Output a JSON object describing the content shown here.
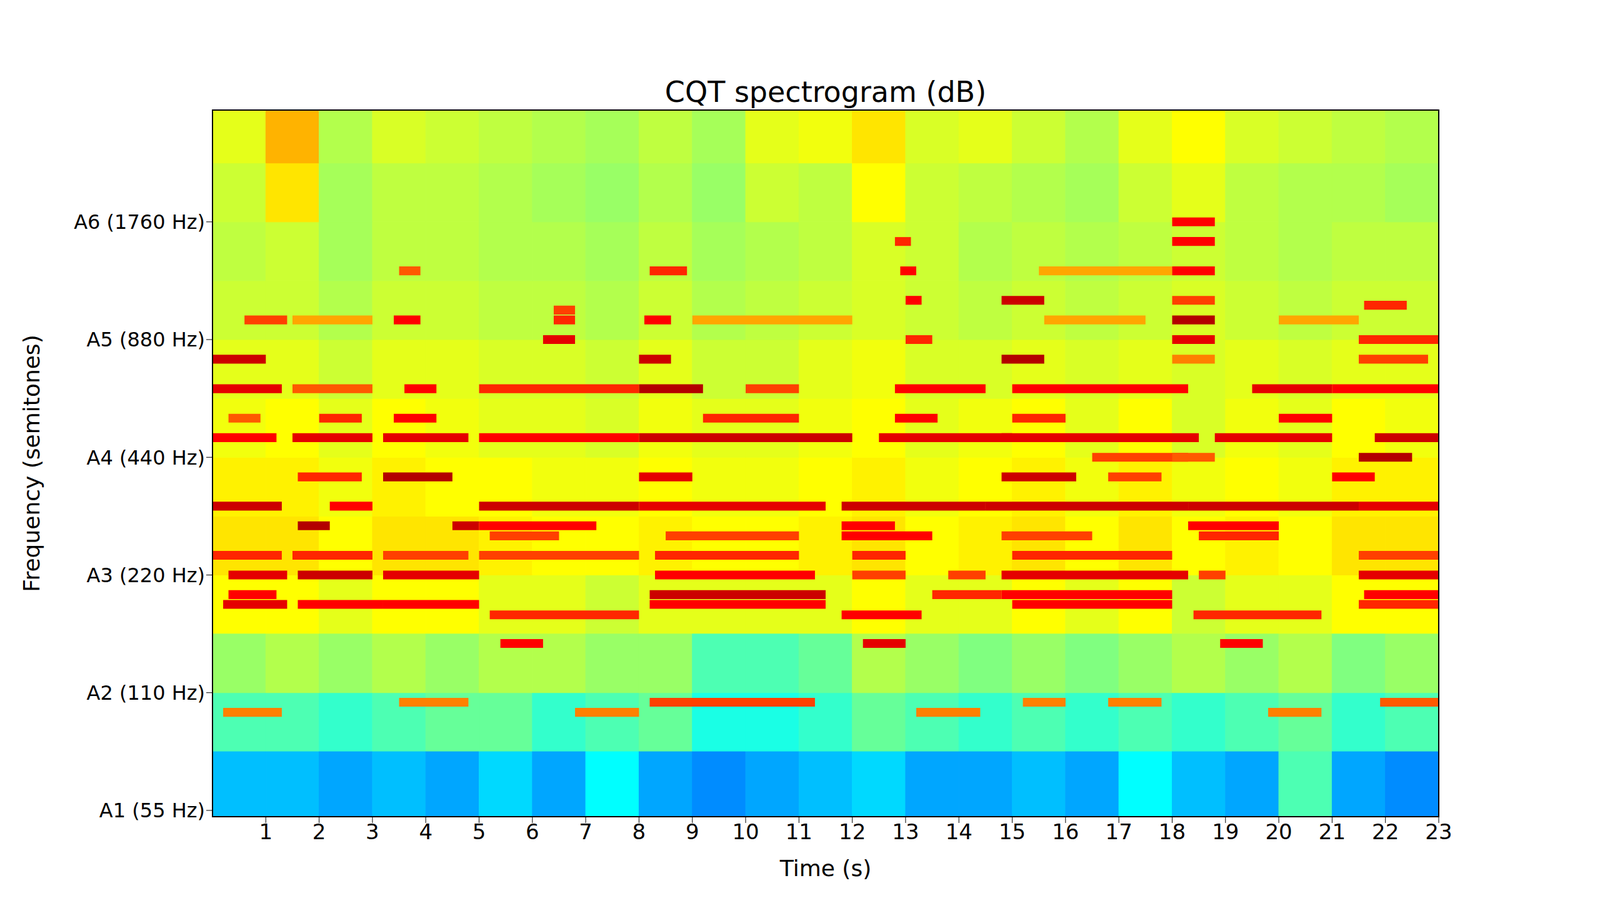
{
  "chart_data": {
    "type": "heatmap",
    "title": "CQT spectrogram (dB)",
    "x_label": "Time (s)",
    "y_label": "Frequency (semitones)",
    "xlim": [
      0,
      23
    ],
    "xticks": [
      1,
      2,
      3,
      4,
      5,
      6,
      7,
      8,
      9,
      10,
      11,
      12,
      13,
      14,
      15,
      16,
      17,
      18,
      19,
      20,
      21,
      22,
      23
    ],
    "ylim": [
      53,
      3400
    ],
    "yticks": [
      {
        "value": 55,
        "label": "A1 (55 Hz)"
      },
      {
        "value": 110,
        "label": "A2 (110 Hz)"
      },
      {
        "value": 220,
        "label": "A3 (220 Hz)"
      },
      {
        "value": 440,
        "label": "A4 (440 Hz)"
      },
      {
        "value": 880,
        "label": "A5 (880 Hz)"
      },
      {
        "value": 1760,
        "label": "A6 (1760 Hz)"
      }
    ],
    "log": "y",
    "grid": false,
    "color_range": [
      -80,
      0
    ],
    "background": {
      "time_edges": [
        0,
        1,
        2,
        3,
        4,
        5,
        6,
        7,
        8,
        9,
        10,
        11,
        12,
        13,
        14,
        15,
        16,
        17,
        18,
        19,
        20,
        21,
        22,
        23
      ],
      "freq_edges": [
        53,
        78,
        110,
        156,
        220,
        311,
        440,
        622,
        880,
        1245,
        1760,
        2489,
        3400
      ],
      "db": [
        [
          -55,
          -55,
          -57,
          -55,
          -57,
          -53,
          -57,
          -50,
          -57,
          -59,
          -57,
          -55,
          -53,
          -57,
          -57,
          -55,
          -57,
          -50,
          -55,
          -57,
          -44,
          -57,
          -59
        ],
        [
          -44,
          -44,
          -46,
          -44,
          -42,
          -42,
          -46,
          -44,
          -42,
          -48,
          -48,
          -46,
          -42,
          -44,
          -46,
          -44,
          -46,
          -44,
          -46,
          -44,
          -42,
          -46,
          -44
        ],
        [
          -38,
          -36,
          -38,
          -36,
          -38,
          -36,
          -36,
          -38,
          -38,
          -44,
          -44,
          -42,
          -36,
          -38,
          -40,
          -38,
          -40,
          -38,
          -36,
          -38,
          -36,
          -40,
          -38
        ],
        [
          -30,
          -30,
          -32,
          -30,
          -30,
          -32,
          -32,
          -34,
          -32,
          -32,
          -32,
          -32,
          -30,
          -32,
          -32,
          -30,
          -32,
          -30,
          -34,
          -32,
          -32,
          -30,
          -30
        ],
        [
          -28,
          -28,
          -30,
          -28,
          -28,
          -29,
          -30,
          -30,
          -29,
          -30,
          -30,
          -29,
          -28,
          -30,
          -29,
          -28,
          -30,
          -28,
          -30,
          -29,
          -30,
          -28,
          -28
        ],
        [
          -29,
          -29,
          -31,
          -29,
          -30,
          -30,
          -31,
          -31,
          -30,
          -31,
          -31,
          -30,
          -29,
          -31,
          -30,
          -29,
          -31,
          -29,
          -31,
          -30,
          -31,
          -29,
          -29
        ],
        [
          -31,
          -30,
          -32,
          -30,
          -31,
          -32,
          -32,
          -33,
          -31,
          -32,
          -32,
          -31,
          -30,
          -32,
          -31,
          -30,
          -32,
          -30,
          -33,
          -31,
          -32,
          -30,
          -31
        ],
        [
          -32,
          -32,
          -34,
          -32,
          -32,
          -33,
          -33,
          -34,
          -32,
          -34,
          -34,
          -32,
          -31,
          -33,
          -33,
          -32,
          -33,
          -32,
          -33,
          -32,
          -33,
          -32,
          -32
        ],
        [
          -34,
          -34,
          -36,
          -34,
          -34,
          -35,
          -35,
          -36,
          -34,
          -36,
          -35,
          -34,
          -33,
          -34,
          -35,
          -34,
          -35,
          -34,
          -33,
          -34,
          -35,
          -34,
          -34
        ],
        [
          -35,
          -34,
          -37,
          -35,
          -35,
          -36,
          -36,
          -37,
          -35,
          -37,
          -36,
          -35,
          -33,
          -34,
          -36,
          -35,
          -36,
          -35,
          -34,
          -35,
          -36,
          -35,
          -35
        ],
        [
          -34,
          -28,
          -37,
          -35,
          -35,
          -36,
          -37,
          -38,
          -36,
          -38,
          -34,
          -35,
          -30,
          -34,
          -35,
          -36,
          -37,
          -34,
          -32,
          -35,
          -36,
          -36,
          -37
        ],
        [
          -32,
          -24,
          -36,
          -33,
          -34,
          -35,
          -36,
          -37,
          -35,
          -37,
          -32,
          -31,
          -28,
          -33,
          -32,
          -34,
          -36,
          -32,
          -30,
          -33,
          -34,
          -35,
          -36
        ]
      ]
    },
    "notes": [
      {
        "t0": 0.2,
        "t1": 1.4,
        "hz": 185,
        "db": -8
      },
      {
        "t0": 0.3,
        "t1": 1.4,
        "hz": 220,
        "db": -8
      },
      {
        "t0": 0.3,
        "t1": 1.2,
        "hz": 196,
        "db": -10
      },
      {
        "t0": 0.0,
        "t1": 1.3,
        "hz": 247,
        "db": -13
      },
      {
        "t0": 0.0,
        "t1": 1.3,
        "hz": 330,
        "db": -6
      },
      {
        "t0": 0.0,
        "t1": 1.2,
        "hz": 494,
        "db": -10
      },
      {
        "t0": 0.0,
        "t1": 1.3,
        "hz": 659,
        "db": -8
      },
      {
        "t0": 0.0,
        "t1": 1.0,
        "hz": 784,
        "db": -6
      },
      {
        "t0": 0.6,
        "t1": 1.4,
        "hz": 988,
        "db": -15
      },
      {
        "t0": 0.2,
        "t1": 1.3,
        "hz": 98,
        "db": -20
      },
      {
        "t0": 0.3,
        "t1": 0.9,
        "hz": 554,
        "db": -17
      },
      {
        "t0": 1.6,
        "t1": 2.2,
        "hz": 294,
        "db": -4
      },
      {
        "t0": 2.2,
        "t1": 3.0,
        "hz": 330,
        "db": -10
      },
      {
        "t0": 1.6,
        "t1": 3.0,
        "hz": 220,
        "db": -6
      },
      {
        "t0": 1.6,
        "t1": 3.2,
        "hz": 185,
        "db": -10
      },
      {
        "t0": 1.5,
        "t1": 3.0,
        "hz": 247,
        "db": -13
      },
      {
        "t0": 1.6,
        "t1": 2.8,
        "hz": 392,
        "db": -13
      },
      {
        "t0": 1.5,
        "t1": 3.0,
        "hz": 494,
        "db": -8
      },
      {
        "t0": 2.0,
        "t1": 2.8,
        "hz": 554,
        "db": -13
      },
      {
        "t0": 1.5,
        "t1": 3.0,
        "hz": 659,
        "db": -17
      },
      {
        "t0": 3.2,
        "t1": 4.5,
        "hz": 392,
        "db": -4
      },
      {
        "t0": 4.5,
        "t1": 5.0,
        "hz": 294,
        "db": -6
      },
      {
        "t0": 3.2,
        "t1": 5.0,
        "hz": 220,
        "db": -8
      },
      {
        "t0": 3.2,
        "t1": 5.0,
        "hz": 185,
        "db": -10
      },
      {
        "t0": 3.2,
        "t1": 4.8,
        "hz": 247,
        "db": -15
      },
      {
        "t0": 3.2,
        "t1": 4.8,
        "hz": 494,
        "db": -8
      },
      {
        "t0": 3.6,
        "t1": 4.2,
        "hz": 659,
        "db": -10
      },
      {
        "t0": 3.4,
        "t1": 4.2,
        "hz": 554,
        "db": -10
      },
      {
        "t0": 3.5,
        "t1": 4.8,
        "hz": 104,
        "db": -20
      },
      {
        "t0": 3.4,
        "t1": 3.9,
        "hz": 988,
        "db": -10
      },
      {
        "t0": 3.5,
        "t1": 3.9,
        "hz": 1319,
        "db": -17
      },
      {
        "t0": 5.0,
        "t1": 8.0,
        "hz": 330,
        "db": -6
      },
      {
        "t0": 5.0,
        "t1": 7.2,
        "hz": 294,
        "db": -10
      },
      {
        "t0": 5.2,
        "t1": 6.5,
        "hz": 277,
        "db": -15
      },
      {
        "t0": 5.0,
        "t1": 8.0,
        "hz": 247,
        "db": -15
      },
      {
        "t0": 5.2,
        "t1": 8.0,
        "hz": 174,
        "db": -13
      },
      {
        "t0": 5.4,
        "t1": 6.2,
        "hz": 147,
        "db": -10
      },
      {
        "t0": 6.8,
        "t1": 8.0,
        "hz": 98,
        "db": -20
      },
      {
        "t0": 5.0,
        "t1": 8.0,
        "hz": 494,
        "db": -10
      },
      {
        "t0": 5.0,
        "t1": 8.0,
        "hz": 659,
        "db": -13
      },
      {
        "t0": 6.2,
        "t1": 6.8,
        "hz": 880,
        "db": -8
      },
      {
        "t0": 6.4,
        "t1": 6.8,
        "hz": 988,
        "db": -13
      },
      {
        "t0": 6.4,
        "t1": 6.8,
        "hz": 1047,
        "db": -15
      },
      {
        "t0": 8.2,
        "t1": 11.5,
        "hz": 196,
        "db": -6
      },
      {
        "t0": 8.3,
        "t1": 11.3,
        "hz": 220,
        "db": -10
      },
      {
        "t0": 8.2,
        "t1": 11.3,
        "hz": 104,
        "db": -15
      },
      {
        "t0": 8.2,
        "t1": 11.5,
        "hz": 185,
        "db": -10
      },
      {
        "t0": 8.3,
        "t1": 11.0,
        "hz": 247,
        "db": -13
      },
      {
        "t0": 8.5,
        "t1": 11.0,
        "hz": 277,
        "db": -15
      },
      {
        "t0": 8.0,
        "t1": 11.5,
        "hz": 330,
        "db": -8
      },
      {
        "t0": 8.0,
        "t1": 9.0,
        "hz": 392,
        "db": -8
      },
      {
        "t0": 8.0,
        "t1": 12.0,
        "hz": 494,
        "db": -6
      },
      {
        "t0": 8.0,
        "t1": 9.2,
        "hz": 659,
        "db": -4
      },
      {
        "t0": 8.0,
        "t1": 8.6,
        "hz": 784,
        "db": -6
      },
      {
        "t0": 8.1,
        "t1": 8.6,
        "hz": 988,
        "db": -10
      },
      {
        "t0": 8.2,
        "t1": 8.9,
        "hz": 1319,
        "db": -13
      },
      {
        "t0": 9.2,
        "t1": 11.0,
        "hz": 554,
        "db": -13
      },
      {
        "t0": 10.0,
        "t1": 11.0,
        "hz": 659,
        "db": -15
      },
      {
        "t0": 11.8,
        "t1": 14.5,
        "hz": 330,
        "db": -6
      },
      {
        "t0": 11.8,
        "t1": 12.8,
        "hz": 294,
        "db": -10
      },
      {
        "t0": 11.8,
        "t1": 13.5,
        "hz": 277,
        "db": -10
      },
      {
        "t0": 12.0,
        "t1": 13.0,
        "hz": 247,
        "db": -13
      },
      {
        "t0": 11.8,
        "t1": 13.3,
        "hz": 174,
        "db": -10
      },
      {
        "t0": 12.2,
        "t1": 13.0,
        "hz": 147,
        "db": -8
      },
      {
        "t0": 12.0,
        "t1": 13.0,
        "hz": 220,
        "db": -15
      },
      {
        "t0": 13.8,
        "t1": 14.5,
        "hz": 220,
        "db": -15
      },
      {
        "t0": 13.5,
        "t1": 14.8,
        "hz": 196,
        "db": -13
      },
      {
        "t0": 12.5,
        "t1": 15.0,
        "hz": 494,
        "db": -8
      },
      {
        "t0": 12.8,
        "t1": 13.6,
        "hz": 554,
        "db": -10
      },
      {
        "t0": 12.8,
        "t1": 14.5,
        "hz": 659,
        "db": -10
      },
      {
        "t0": 13.2,
        "t1": 14.4,
        "hz": 98,
        "db": -20
      },
      {
        "t0": 13.0,
        "t1": 13.5,
        "hz": 880,
        "db": -13
      },
      {
        "t0": 13.0,
        "t1": 13.3,
        "hz": 1109,
        "db": -10
      },
      {
        "t0": 12.9,
        "t1": 13.2,
        "hz": 1319,
        "db": -10
      },
      {
        "t0": 12.8,
        "t1": 13.1,
        "hz": 1568,
        "db": -13
      },
      {
        "t0": 14.5,
        "t1": 18.3,
        "hz": 330,
        "db": -6
      },
      {
        "t0": 14.8,
        "t1": 16.2,
        "hz": 392,
        "db": -6
      },
      {
        "t0": 14.8,
        "t1": 18.3,
        "hz": 220,
        "db": -8
      },
      {
        "t0": 14.8,
        "t1": 18.0,
        "hz": 196,
        "db": -10
      },
      {
        "t0": 15.0,
        "t1": 18.0,
        "hz": 185,
        "db": -10
      },
      {
        "t0": 15.0,
        "t1": 18.0,
        "hz": 247,
        "db": -13
      },
      {
        "t0": 14.8,
        "t1": 16.5,
        "hz": 277,
        "db": -15
      },
      {
        "t0": 15.2,
        "t1": 16.0,
        "hz": 104,
        "db": -20
      },
      {
        "t0": 16.8,
        "t1": 17.8,
        "hz": 104,
        "db": -20
      },
      {
        "t0": 14.8,
        "t1": 18.5,
        "hz": 494,
        "db": -8
      },
      {
        "t0": 15.0,
        "t1": 16.0,
        "hz": 554,
        "db": -13
      },
      {
        "t0": 15.0,
        "t1": 18.3,
        "hz": 659,
        "db": -10
      },
      {
        "t0": 14.8,
        "t1": 15.6,
        "hz": 784,
        "db": -4
      },
      {
        "t0": 14.8,
        "t1": 15.6,
        "hz": 1109,
        "db": -6
      },
      {
        "t0": 15.5,
        "t1": 18.0,
        "hz": 1319,
        "db": -23
      },
      {
        "t0": 16.5,
        "t1": 18.3,
        "hz": 440,
        "db": -15
      },
      {
        "t0": 16.8,
        "t1": 17.8,
        "hz": 392,
        "db": -15
      },
      {
        "t0": 18.0,
        "t1": 18.8,
        "hz": 880,
        "db": -8
      },
      {
        "t0": 18.0,
        "t1": 18.8,
        "hz": 988,
        "db": -4
      },
      {
        "t0": 18.0,
        "t1": 18.8,
        "hz": 1109,
        "db": -15
      },
      {
        "t0": 18.0,
        "t1": 18.8,
        "hz": 1319,
        "db": -10
      },
      {
        "t0": 18.0,
        "t1": 18.8,
        "hz": 1568,
        "db": -10
      },
      {
        "t0": 18.0,
        "t1": 18.8,
        "hz": 1760,
        "db": -10
      },
      {
        "t0": 18.0,
        "t1": 18.8,
        "hz": 784,
        "db": -20
      },
      {
        "t0": 18.3,
        "t1": 21.5,
        "hz": 330,
        "db": -6
      },
      {
        "t0": 18.3,
        "t1": 20.0,
        "hz": 294,
        "db": -10
      },
      {
        "t0": 18.5,
        "t1": 20.0,
        "hz": 277,
        "db": -13
      },
      {
        "t0": 18.4,
        "t1": 20.8,
        "hz": 174,
        "db": -13
      },
      {
        "t0": 18.9,
        "t1": 19.7,
        "hz": 147,
        "db": -10
      },
      {
        "t0": 18.5,
        "t1": 19.0,
        "hz": 220,
        "db": -15
      },
      {
        "t0": 19.8,
        "t1": 20.8,
        "hz": 98,
        "db": -20
      },
      {
        "t0": 18.8,
        "t1": 21.0,
        "hz": 494,
        "db": -8
      },
      {
        "t0": 19.5,
        "t1": 21.0,
        "hz": 659,
        "db": -8
      },
      {
        "t0": 20.0,
        "t1": 21.0,
        "hz": 554,
        "db": -10
      },
      {
        "t0": 18.0,
        "t1": 18.8,
        "hz": 440,
        "db": -17
      },
      {
        "t0": 21.9,
        "t1": 23.0,
        "hz": 104,
        "db": -17
      },
      {
        "t0": 21.5,
        "t1": 23.0,
        "hz": 220,
        "db": -8
      },
      {
        "t0": 21.6,
        "t1": 23.0,
        "hz": 196,
        "db": -10
      },
      {
        "t0": 21.5,
        "t1": 23.0,
        "hz": 185,
        "db": -13
      },
      {
        "t0": 21.5,
        "t1": 23.0,
        "hz": 247,
        "db": -15
      },
      {
        "t0": 21.5,
        "t1": 23.0,
        "hz": 330,
        "db": -8
      },
      {
        "t0": 21.5,
        "t1": 22.5,
        "hz": 440,
        "db": -4
      },
      {
        "t0": 21.8,
        "t1": 23.0,
        "hz": 494,
        "db": -6
      },
      {
        "t0": 21.0,
        "t1": 23.0,
        "hz": 659,
        "db": -10
      },
      {
        "t0": 21.5,
        "t1": 22.8,
        "hz": 784,
        "db": -15
      },
      {
        "t0": 21.6,
        "t1": 22.4,
        "hz": 1077,
        "db": -13
      },
      {
        "t0": 21.5,
        "t1": 23.0,
        "hz": 880,
        "db": -13
      },
      {
        "t0": 21.0,
        "t1": 21.8,
        "hz": 392,
        "db": -10
      },
      {
        "t0": 1.5,
        "t1": 3.0,
        "hz": 988,
        "db": -23
      },
      {
        "t0": 9.0,
        "t1": 12.0,
        "hz": 988,
        "db": -23
      },
      {
        "t0": 15.6,
        "t1": 17.5,
        "hz": 988,
        "db": -23
      },
      {
        "t0": 20.0,
        "t1": 21.5,
        "hz": 988,
        "db": -23
      }
    ]
  }
}
